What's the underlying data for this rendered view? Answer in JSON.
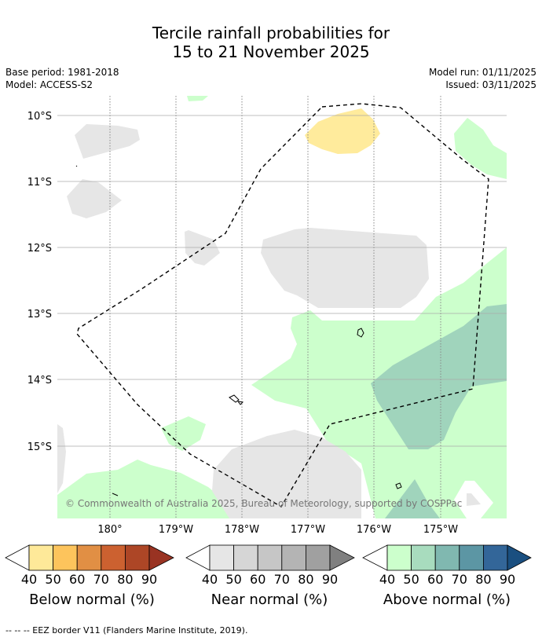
{
  "header": {
    "title_line1": "Tercile rainfall probabilities for",
    "title_line2": "15 to 21 November 2025",
    "base_period": "Base period: 1981-2018",
    "model": "Model: ACCESS-S2",
    "model_run": "Model run: 01/11/2025",
    "issued": "Issued: 03/11/2025"
  },
  "map": {
    "lat_labels": [
      "10°S",
      "11°S",
      "12°S",
      "13°S",
      "14°S",
      "15°S"
    ],
    "lon_labels": [
      "180°",
      "179°W",
      "178°W",
      "177°W",
      "176°W",
      "175°W"
    ],
    "copyright": "© Commonwealth of Australia 2025, Bureau of Meteorology, supported by COSPPac",
    "colors": {
      "below_40": "#ffeb9c",
      "near_40": "#e6e6e6",
      "above_40": "#ccffcc",
      "above_50": "#a0d4bc",
      "eez_border": "#000000",
      "grid": "#aaaaaa"
    }
  },
  "colorbars": [
    {
      "name": "below",
      "label": "Below normal (%)",
      "ticks": [
        "40",
        "50",
        "60",
        "70",
        "80",
        "90"
      ],
      "colors": [
        "#fee999",
        "#fdc45c",
        "#e18f44",
        "#cc6130",
        "#ad4626",
        "#993322"
      ]
    },
    {
      "name": "near",
      "label": "Near normal (%)",
      "ticks": [
        "40",
        "50",
        "60",
        "70",
        "80",
        "90"
      ],
      "colors": [
        "#e6e6e6",
        "#d6d6d6",
        "#c6c6c6",
        "#b4b4b4",
        "#a0a0a0",
        "#808080"
      ]
    },
    {
      "name": "above",
      "label": "Above normal (%)",
      "ticks": [
        "40",
        "50",
        "60",
        "70",
        "80",
        "90"
      ],
      "colors": [
        "#ccffcc",
        "#a8dcbe",
        "#80b8b0",
        "#5c96a4",
        "#336699",
        "#1a4f80"
      ]
    }
  ],
  "footnote": "-- -- -- EEZ border V11 (Flanders Marine Institute, 2019)."
}
